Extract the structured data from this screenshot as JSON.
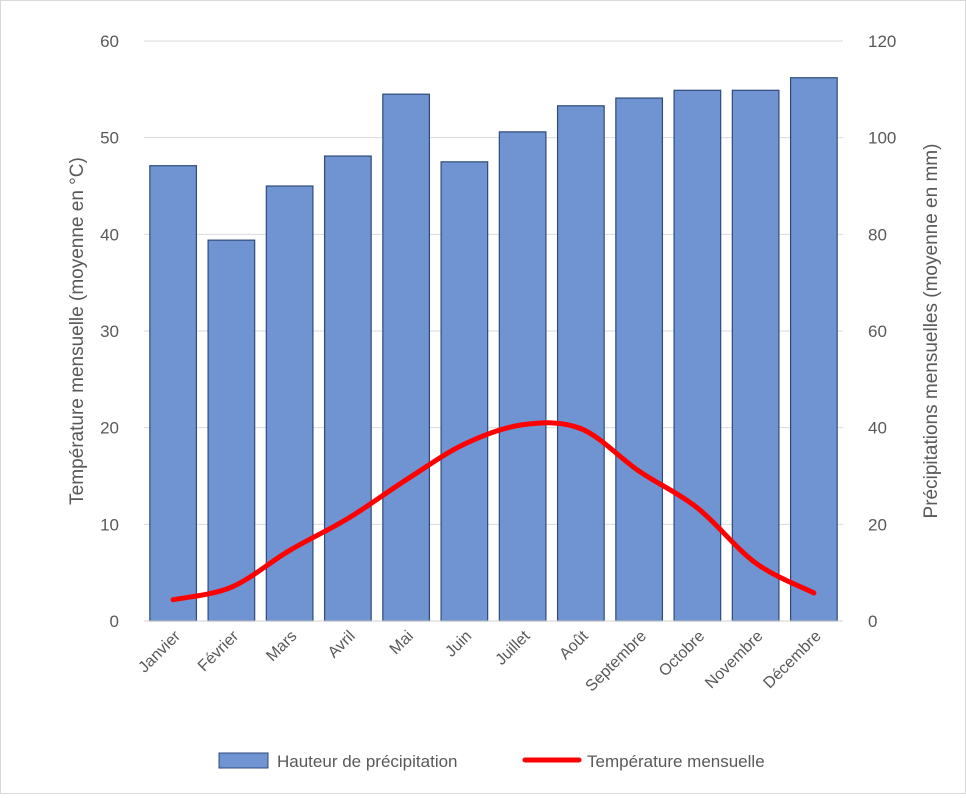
{
  "chart_data": {
    "type": "bar",
    "categories": [
      "Janvier",
      "Février",
      "Mars",
      "Avril",
      "Mai",
      "Juin",
      "Juillet",
      "Août",
      "Septembre",
      "Octobre",
      "Novembre",
      "Décembre"
    ],
    "series": [
      {
        "name": "Hauteur de précipitation",
        "type": "bar",
        "axis": "right",
        "color": "#6f94d1",
        "values": [
          94.2,
          78.8,
          90,
          96.2,
          109,
          95,
          101.2,
          106.6,
          108.2,
          109.8,
          109.8,
          112.4
        ]
      },
      {
        "name": "Température mensuelle",
        "type": "line",
        "axis": "left",
        "color": "#ff0000",
        "values": [
          2.2,
          3.5,
          7.3,
          10.6,
          14.6,
          18.3,
          20.3,
          19.9,
          15.5,
          11.7,
          6,
          2.9
        ]
      }
    ],
    "y_left": {
      "label": "Température  mensuelle  (moyenne en °C)",
      "ylim": [
        0,
        60
      ],
      "ticks": [
        0,
        10,
        20,
        30,
        40,
        50,
        60
      ]
    },
    "y_right": {
      "label": "Précipitations  mensuelles  (moyenne en mm)",
      "ylim": [
        0,
        120
      ],
      "ticks": [
        0,
        20,
        40,
        60,
        80,
        100,
        120
      ]
    },
    "grid": true,
    "legend": "bottom"
  }
}
